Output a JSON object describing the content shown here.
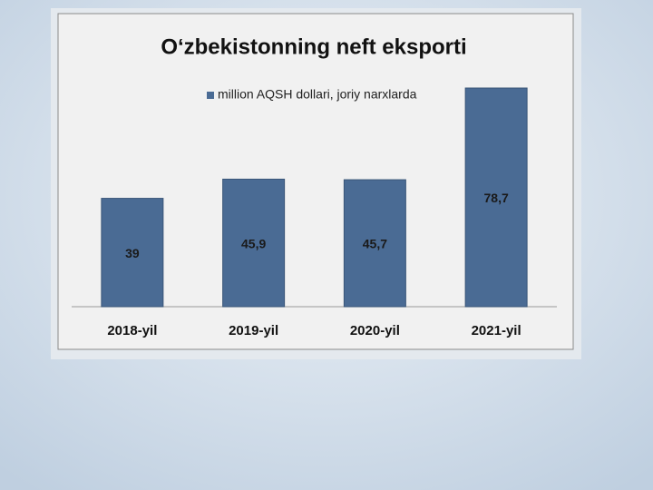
{
  "chart_data": {
    "type": "bar",
    "title": "O‘zbekistonning neft eksporti",
    "series": [
      {
        "name": "million AQSH dollari, joriy narxlarda",
        "color": "#4a6b94",
        "values": [
          39,
          45.9,
          45.7,
          78.7
        ],
        "value_labels": [
          "39",
          "45,9",
          "45,7",
          "78,7"
        ]
      }
    ],
    "categories": [
      "2018-yil",
      "2019-yil",
      "2020-yil",
      "2021-yil"
    ]
  }
}
